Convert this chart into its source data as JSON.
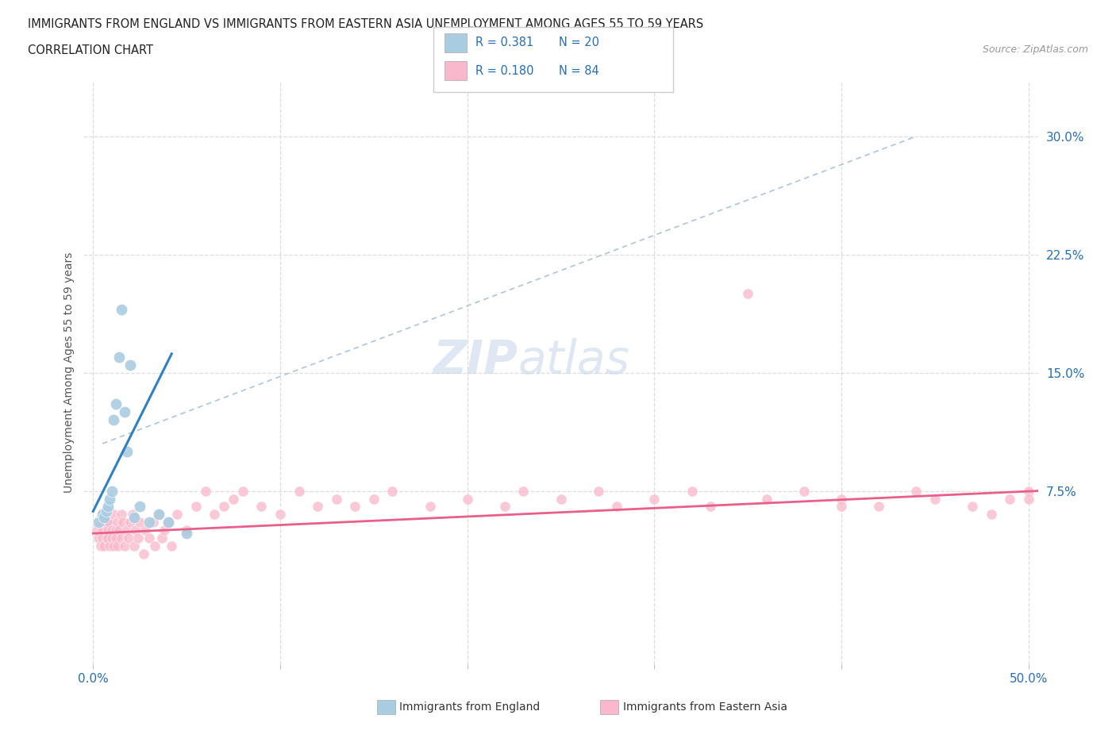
{
  "title_line1": "IMMIGRANTS FROM ENGLAND VS IMMIGRANTS FROM EASTERN ASIA UNEMPLOYMENT AMONG AGES 55 TO 59 YEARS",
  "title_line2": "CORRELATION CHART",
  "source_text": "Source: ZipAtlas.com",
  "ylabel": "Unemployment Among Ages 55 to 59 years",
  "xlim": [
    -0.005,
    0.505
  ],
  "ylim": [
    -0.035,
    0.335
  ],
  "yticks_right": [
    0.075,
    0.15,
    0.225,
    0.3
  ],
  "ytick_right_labels": [
    "7.5%",
    "15.0%",
    "22.5%",
    "30.0%"
  ],
  "R_england": 0.381,
  "N_england": 20,
  "R_eastern_asia": 0.18,
  "N_eastern_asia": 84,
  "color_england": "#a8cce0",
  "color_eastern_asia": "#f9b8cc",
  "color_england_line": "#3080c0",
  "color_eastern_asia_line": "#e8608a",
  "color_dashed_line": "#b0c4d8",
  "watermark_zip": "ZIP",
  "watermark_atlas": "atlas",
  "eng_x": [
    0.003,
    0.005,
    0.006,
    0.007,
    0.008,
    0.009,
    0.01,
    0.011,
    0.012,
    0.014,
    0.015,
    0.017,
    0.018,
    0.02,
    0.022,
    0.025,
    0.03,
    0.035,
    0.04,
    0.05
  ],
  "eng_y": [
    0.055,
    0.06,
    0.058,
    0.062,
    0.065,
    0.07,
    0.075,
    0.12,
    0.13,
    0.16,
    0.19,
    0.125,
    0.1,
    0.155,
    0.058,
    0.065,
    0.055,
    0.06,
    0.055,
    0.048
  ],
  "ea_x": [
    0.002,
    0.003,
    0.004,
    0.004,
    0.005,
    0.005,
    0.006,
    0.006,
    0.007,
    0.007,
    0.008,
    0.008,
    0.009,
    0.009,
    0.01,
    0.01,
    0.011,
    0.011,
    0.012,
    0.012,
    0.013,
    0.013,
    0.014,
    0.015,
    0.015,
    0.016,
    0.017,
    0.018,
    0.019,
    0.02,
    0.021,
    0.022,
    0.023,
    0.024,
    0.025,
    0.027,
    0.028,
    0.03,
    0.032,
    0.033,
    0.035,
    0.037,
    0.038,
    0.04,
    0.042,
    0.045,
    0.05,
    0.055,
    0.06,
    0.065,
    0.07,
    0.075,
    0.08,
    0.09,
    0.1,
    0.11,
    0.12,
    0.13,
    0.14,
    0.15,
    0.16,
    0.18,
    0.2,
    0.22,
    0.23,
    0.25,
    0.27,
    0.28,
    0.3,
    0.32,
    0.33,
    0.36,
    0.38,
    0.4,
    0.42,
    0.44,
    0.45,
    0.47,
    0.49,
    0.5,
    0.35,
    0.4,
    0.5,
    0.48
  ],
  "ea_y": [
    0.05,
    0.045,
    0.055,
    0.04,
    0.05,
    0.045,
    0.055,
    0.04,
    0.045,
    0.055,
    0.05,
    0.045,
    0.055,
    0.04,
    0.05,
    0.045,
    0.06,
    0.04,
    0.05,
    0.045,
    0.055,
    0.04,
    0.05,
    0.06,
    0.045,
    0.055,
    0.04,
    0.05,
    0.045,
    0.055,
    0.06,
    0.04,
    0.05,
    0.045,
    0.055,
    0.035,
    0.05,
    0.045,
    0.055,
    0.04,
    0.06,
    0.045,
    0.05,
    0.055,
    0.04,
    0.06,
    0.05,
    0.065,
    0.075,
    0.06,
    0.065,
    0.07,
    0.075,
    0.065,
    0.06,
    0.075,
    0.065,
    0.07,
    0.065,
    0.07,
    0.075,
    0.065,
    0.07,
    0.065,
    0.075,
    0.07,
    0.075,
    0.065,
    0.07,
    0.075,
    0.065,
    0.07,
    0.075,
    0.07,
    0.065,
    0.075,
    0.07,
    0.065,
    0.07,
    0.075,
    0.2,
    0.065,
    0.07,
    0.06
  ],
  "eng_line_x": [
    0.0,
    0.042
  ],
  "eng_line_y": [
    0.062,
    0.162
  ],
  "ea_line_x": [
    0.0,
    0.505
  ],
  "ea_line_y": [
    0.048,
    0.075
  ],
  "dash_line_x": [
    0.005,
    0.44
  ],
  "dash_line_y": [
    0.105,
    0.3
  ]
}
